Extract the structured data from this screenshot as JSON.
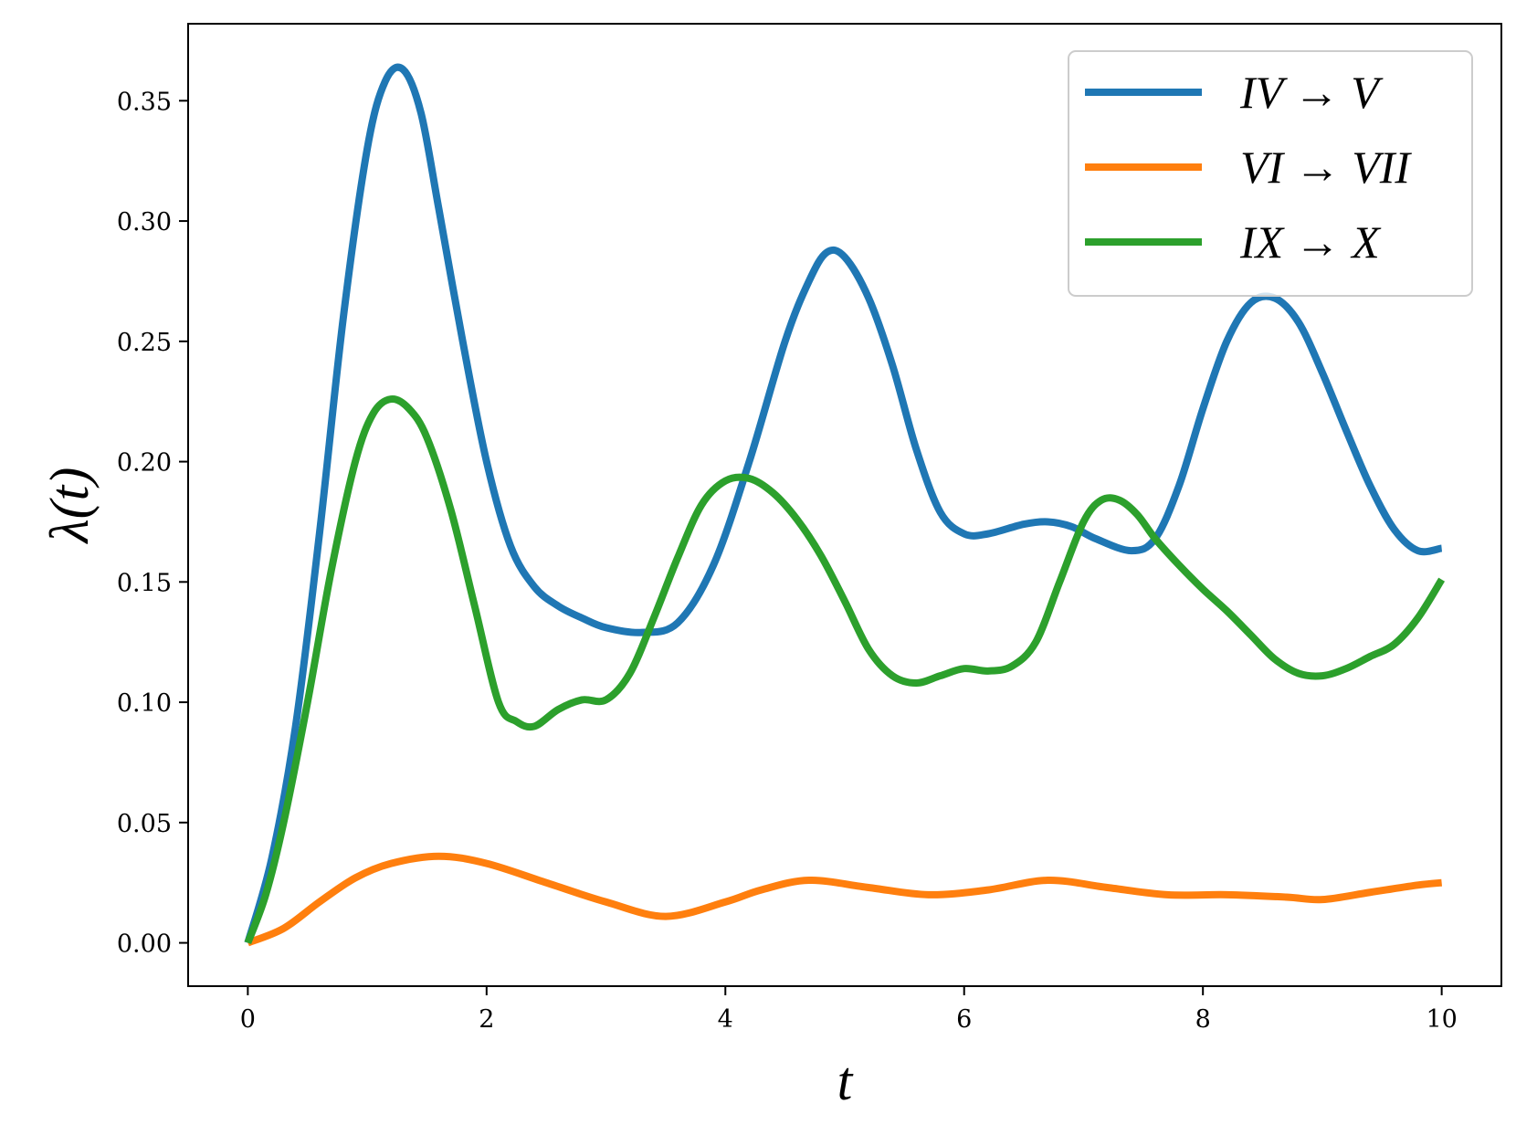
{
  "chart_data": {
    "type": "line",
    "title": "",
    "xlabel": "t",
    "ylabel": "λ(t)",
    "xlim": [
      -0.5,
      10.5
    ],
    "ylim": [
      -0.018,
      0.382
    ],
    "xticks": [
      0,
      2,
      4,
      6,
      8,
      10
    ],
    "xtick_labels": [
      "0",
      "2",
      "4",
      "6",
      "8",
      "10"
    ],
    "yticks": [
      0.0,
      0.05,
      0.1,
      0.15,
      0.2,
      0.25,
      0.3,
      0.35
    ],
    "ytick_labels": [
      "0.00",
      "0.05",
      "0.10",
      "0.15",
      "0.20",
      "0.25",
      "0.30",
      "0.35"
    ],
    "grid": false,
    "legend": {
      "position": "top-right"
    },
    "series": [
      {
        "name": "IV → V",
        "color": "#1f77b4",
        "x": [
          0,
          0.2,
          0.4,
          0.6,
          0.8,
          1.0,
          1.15,
          1.3,
          1.45,
          1.6,
          1.8,
          2.0,
          2.2,
          2.4,
          2.6,
          2.8,
          3.0,
          3.3,
          3.6,
          3.9,
          4.2,
          4.5,
          4.7,
          4.85,
          5.0,
          5.2,
          5.4,
          5.6,
          5.8,
          6.0,
          6.2,
          6.5,
          6.7,
          6.9,
          7.1,
          7.4,
          7.6,
          7.8,
          8.0,
          8.2,
          8.4,
          8.6,
          8.8,
          9.0,
          9.2,
          9.4,
          9.6,
          9.8,
          10.0
        ],
        "values": [
          0.0,
          0.035,
          0.09,
          0.17,
          0.26,
          0.33,
          0.358,
          0.363,
          0.345,
          0.305,
          0.25,
          0.2,
          0.165,
          0.148,
          0.14,
          0.135,
          0.131,
          0.129,
          0.133,
          0.157,
          0.2,
          0.25,
          0.275,
          0.287,
          0.285,
          0.268,
          0.24,
          0.205,
          0.179,
          0.17,
          0.17,
          0.174,
          0.175,
          0.173,
          0.168,
          0.163,
          0.168,
          0.19,
          0.222,
          0.25,
          0.266,
          0.268,
          0.258,
          0.237,
          0.213,
          0.19,
          0.172,
          0.163,
          0.164
        ]
      },
      {
        "name": "VI → VII",
        "color": "#ff7f0e",
        "x": [
          0,
          0.3,
          0.6,
          0.9,
          1.2,
          1.6,
          2.0,
          2.5,
          3.0,
          3.5,
          4.0,
          4.3,
          4.7,
          5.2,
          5.7,
          6.2,
          6.7,
          7.2,
          7.7,
          8.2,
          8.7,
          9.0,
          9.4,
          9.8,
          10.0
        ],
        "values": [
          0.0,
          0.006,
          0.017,
          0.027,
          0.033,
          0.036,
          0.033,
          0.025,
          0.017,
          0.011,
          0.017,
          0.022,
          0.026,
          0.023,
          0.02,
          0.022,
          0.026,
          0.023,
          0.02,
          0.02,
          0.019,
          0.018,
          0.021,
          0.024,
          0.025
        ]
      },
      {
        "name": "IX → X",
        "color": "#2ca02c",
        "x": [
          0,
          0.15,
          0.3,
          0.5,
          0.7,
          0.9,
          1.05,
          1.2,
          1.35,
          1.5,
          1.7,
          1.9,
          2.1,
          2.25,
          2.4,
          2.6,
          2.8,
          3.0,
          3.2,
          3.4,
          3.6,
          3.8,
          4.0,
          4.2,
          4.4,
          4.6,
          4.8,
          5.0,
          5.2,
          5.4,
          5.6,
          5.8,
          6.0,
          6.2,
          6.4,
          6.6,
          6.8,
          7.0,
          7.15,
          7.3,
          7.45,
          7.6,
          7.8,
          8.0,
          8.2,
          8.4,
          8.6,
          8.8,
          9.0,
          9.2,
          9.4,
          9.6,
          9.8,
          10.0
        ],
        "values": [
          0.0,
          0.02,
          0.05,
          0.1,
          0.155,
          0.2,
          0.22,
          0.226,
          0.222,
          0.21,
          0.18,
          0.14,
          0.1,
          0.092,
          0.09,
          0.097,
          0.101,
          0.101,
          0.112,
          0.135,
          0.16,
          0.182,
          0.192,
          0.193,
          0.187,
          0.176,
          0.161,
          0.142,
          0.122,
          0.111,
          0.108,
          0.111,
          0.114,
          0.113,
          0.115,
          0.125,
          0.15,
          0.175,
          0.184,
          0.184,
          0.178,
          0.168,
          0.157,
          0.147,
          0.138,
          0.128,
          0.118,
          0.112,
          0.111,
          0.114,
          0.119,
          0.124,
          0.135,
          0.151
        ]
      }
    ]
  }
}
